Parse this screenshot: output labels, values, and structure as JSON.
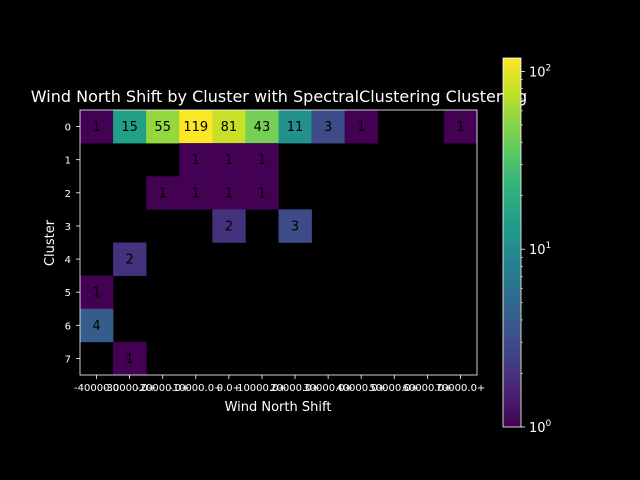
{
  "chart_data": {
    "type": "heatmap",
    "title": "Wind North Shift by Cluster with SpectralClustering Clustering",
    "xlabel": "Wind North Shift",
    "ylabel": "Cluster",
    "x_categories": [
      "-40000.0",
      "-30000.0+",
      "-20000.0+",
      "-10000.0+",
      "0.0+",
      "10000.0+",
      "20000.0+",
      "30000.0+",
      "40000.0+",
      "50000.0+",
      "60000.0+",
      "70000.0+"
    ],
    "y_categories": [
      "0",
      "1",
      "2",
      "3",
      "4",
      "5",
      "6",
      "7"
    ],
    "matrix": [
      [
        1,
        15,
        55,
        119,
        81,
        43,
        11,
        3,
        1,
        0,
        0,
        1
      ],
      [
        0,
        0,
        0,
        1,
        1,
        1,
        0,
        0,
        0,
        0,
        0,
        0
      ],
      [
        0,
        0,
        1,
        1,
        1,
        1,
        0,
        0,
        0,
        0,
        0,
        0
      ],
      [
        0,
        0,
        0,
        0,
        2,
        0,
        3,
        0,
        0,
        0,
        0,
        0
      ],
      [
        0,
        2,
        0,
        0,
        0,
        0,
        0,
        0,
        0,
        0,
        0,
        0
      ],
      [
        1,
        0,
        0,
        0,
        0,
        0,
        0,
        0,
        0,
        0,
        0,
        0
      ],
      [
        4,
        0,
        0,
        0,
        0,
        0,
        0,
        0,
        0,
        0,
        0,
        0
      ],
      [
        0,
        1,
        0,
        0,
        0,
        0,
        0,
        0,
        0,
        0,
        0,
        0
      ]
    ],
    "colorbar": {
      "scale": "log",
      "range": [
        1,
        119
      ],
      "colormap": "viridis",
      "ticks": [
        {
          "value": 1,
          "label": "10"
        },
        {
          "value": 10,
          "label": "10"
        },
        {
          "value": 100,
          "label": "10"
        }
      ],
      "tick_exponents": [
        "0",
        "1",
        "2"
      ]
    },
    "grid": false
  }
}
